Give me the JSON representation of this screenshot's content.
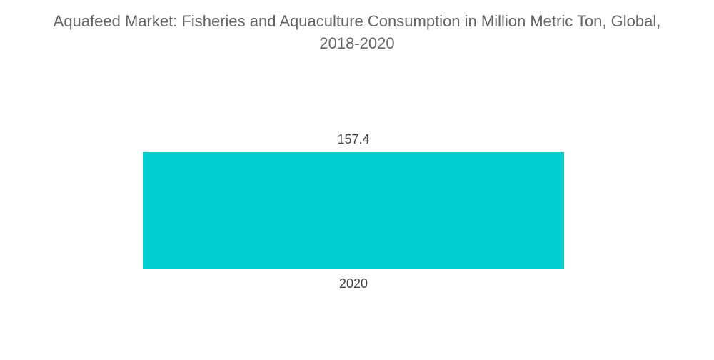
{
  "chart_data": {
    "type": "bar",
    "title_line1": "Aquafeed Market: Fisheries and Aquaculture Consumption in Million Metric Ton, Global,",
    "title_line2": "2018-2020",
    "categories": [
      "2020"
    ],
    "values": [
      157.4
    ],
    "value_labels": [
      "157.4"
    ],
    "xlabel": "",
    "ylabel": "",
    "ylim": [
      0,
      157.4
    ],
    "grid": false,
    "legend": "none",
    "bar_color": "#00ced1"
  }
}
